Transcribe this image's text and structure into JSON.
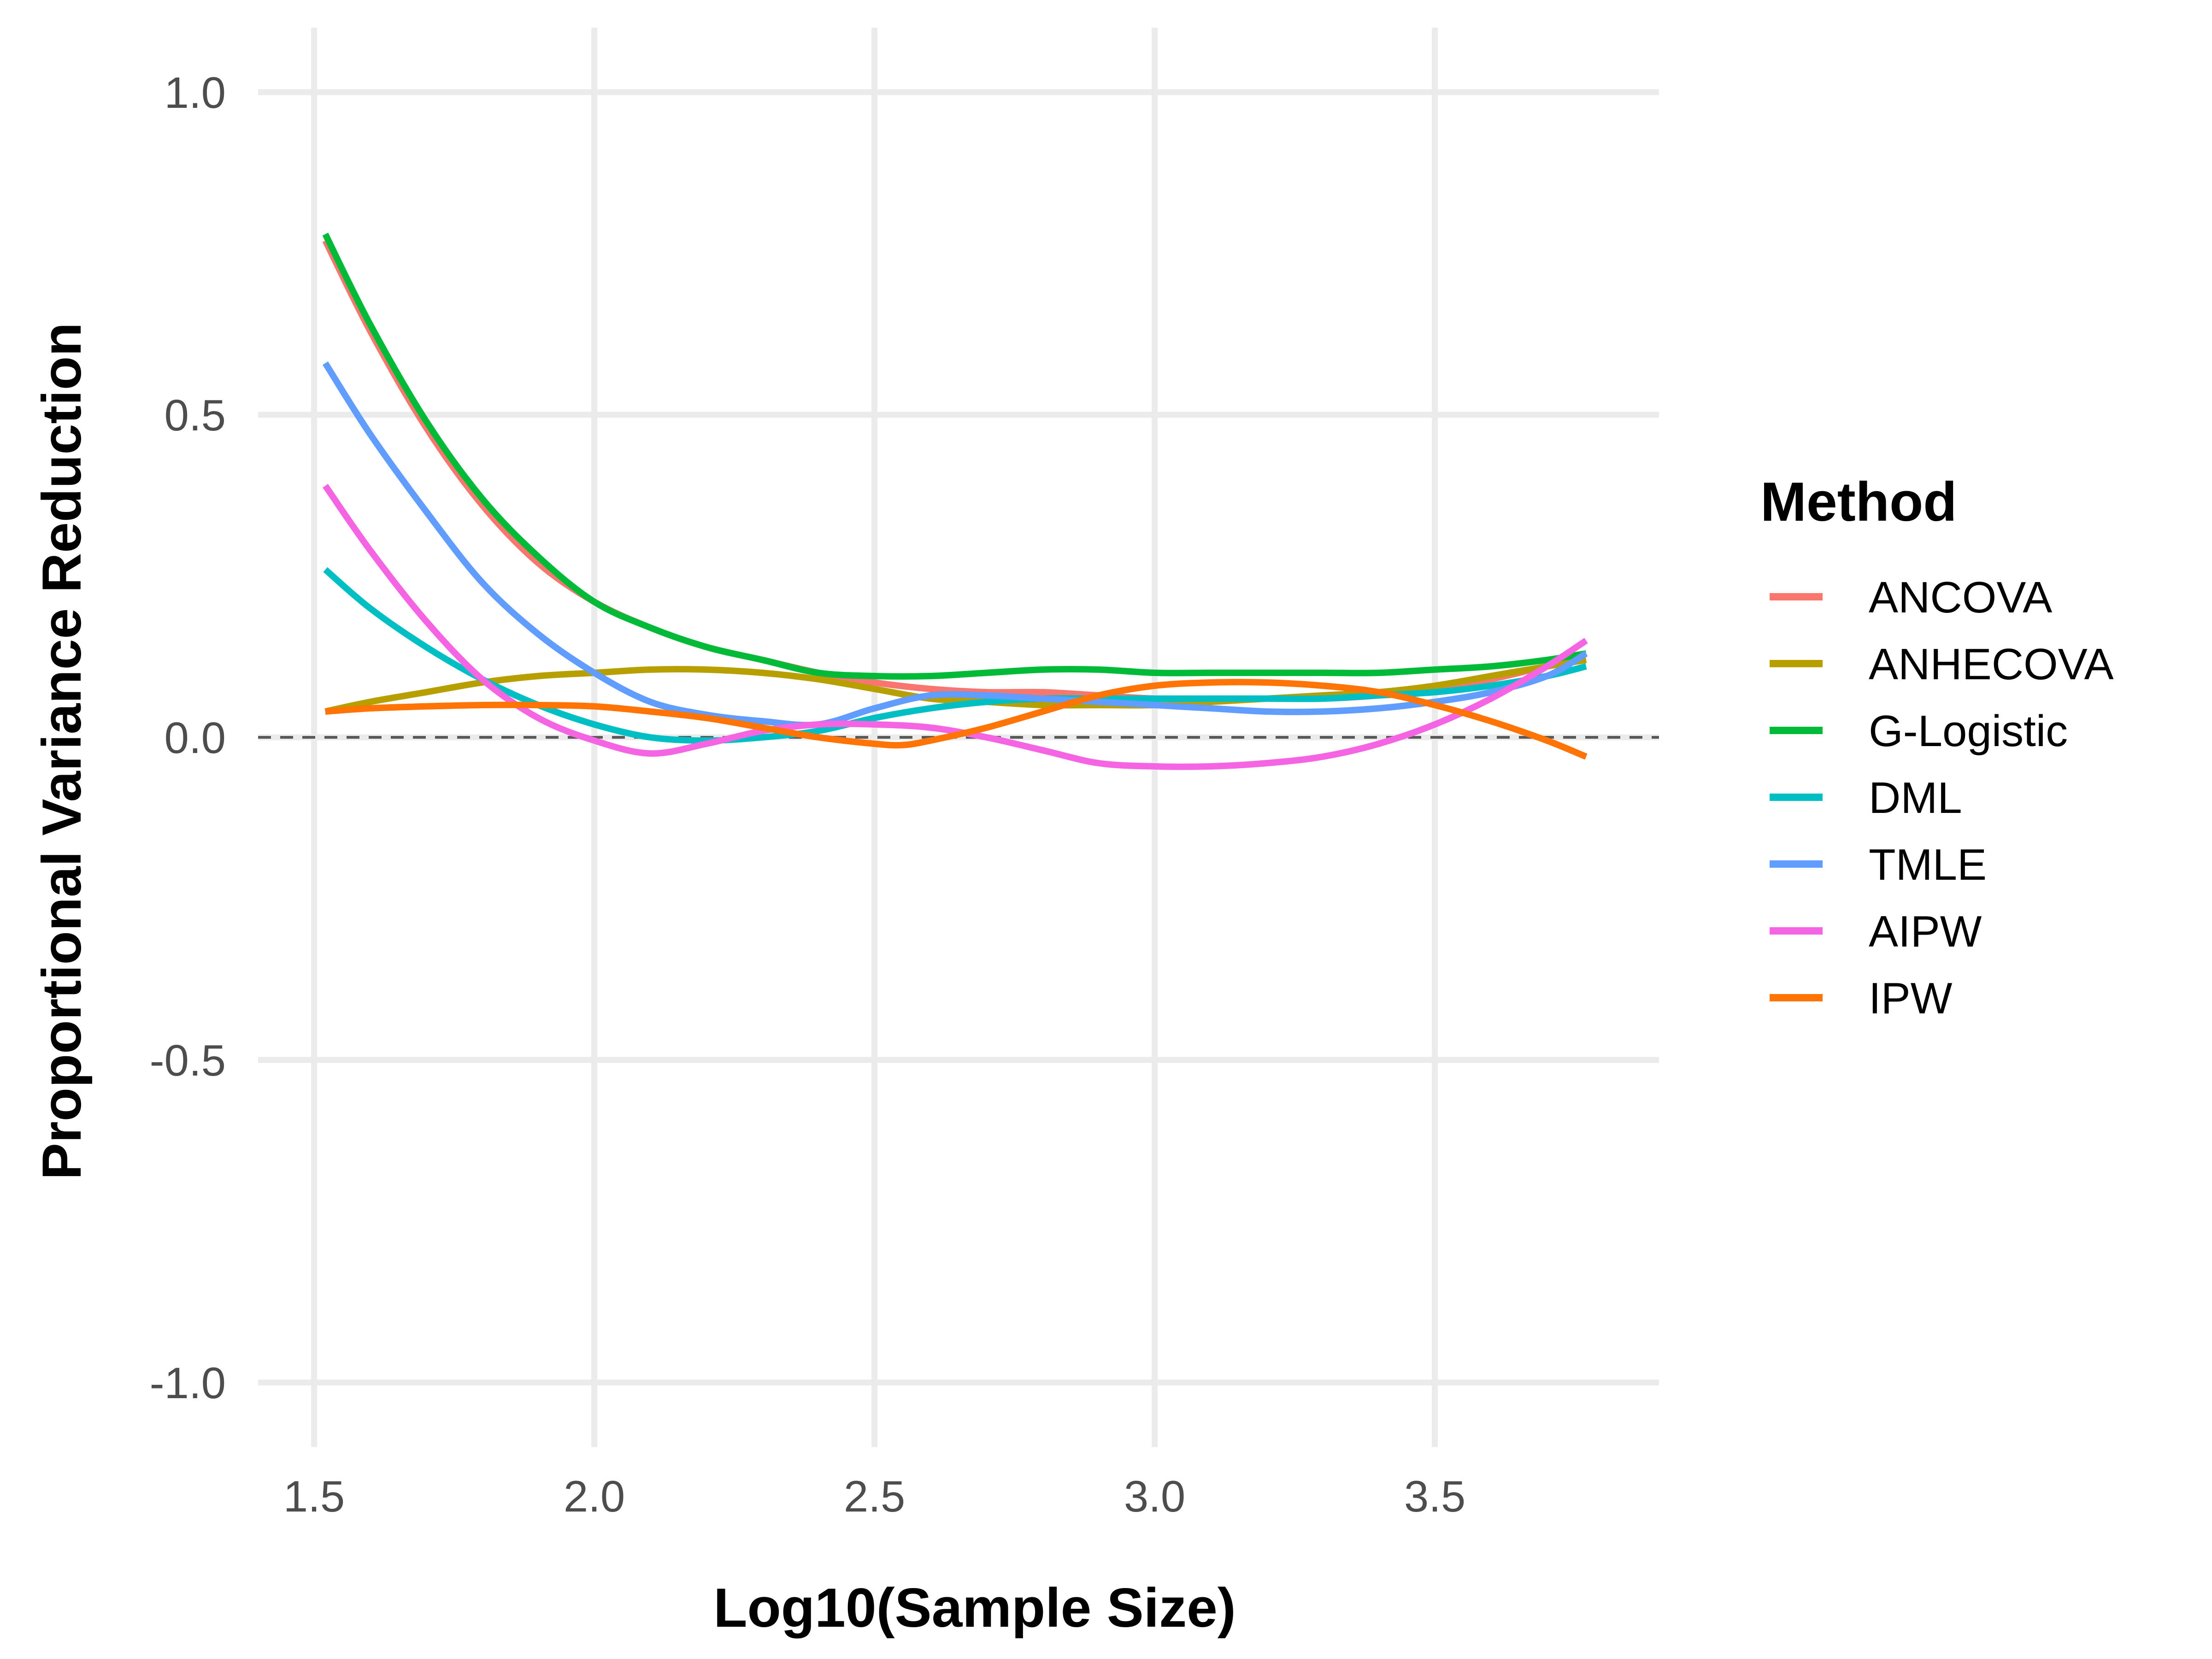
{
  "chart_data": {
    "type": "line",
    "title": "",
    "xlabel": "Log10(Sample Size)",
    "ylabel": "Proportional Variance Reduction",
    "xlim": [
      1.4,
      3.9
    ],
    "ylim": [
      -1.1,
      1.1
    ],
    "x_ticks": [
      "1.5",
      "2.0",
      "2.5",
      "3.0",
      "3.5"
    ],
    "y_ticks": [
      "-1.0",
      "-0.5",
      "0.0",
      "0.5",
      "1.0"
    ],
    "x_tick_values": [
      1.5,
      2.0,
      2.5,
      3.0,
      3.5
    ],
    "y_tick_values": [
      -1.0,
      -0.5,
      0.0,
      0.5,
      1.0
    ],
    "reference_line": {
      "y": 0.0,
      "style": "dashed",
      "color": "#5a5a5a"
    },
    "grid": true,
    "legend": {
      "title": "Method",
      "position": "right"
    },
    "series": [
      {
        "name": "ANCOVA",
        "color": "#F8766D",
        "points": [
          [
            1.52,
            0.77
          ],
          [
            1.6,
            0.63
          ],
          [
            1.7,
            0.48
          ],
          [
            1.8,
            0.36
          ],
          [
            1.9,
            0.27
          ],
          [
            2.0,
            0.21
          ],
          [
            2.1,
            0.17
          ],
          [
            2.2,
            0.14
          ],
          [
            2.3,
            0.12
          ],
          [
            2.4,
            0.1
          ],
          [
            2.5,
            0.085
          ],
          [
            2.6,
            0.075
          ],
          [
            2.7,
            0.07
          ],
          [
            2.8,
            0.07
          ],
          [
            2.9,
            0.065
          ],
          [
            3.0,
            0.06
          ],
          [
            3.1,
            0.06
          ],
          [
            3.2,
            0.06
          ],
          [
            3.3,
            0.06
          ],
          [
            3.4,
            0.065
          ],
          [
            3.5,
            0.075
          ],
          [
            3.6,
            0.09
          ],
          [
            3.7,
            0.11
          ],
          [
            3.77,
            0.12
          ]
        ]
      },
      {
        "name": "ANHECOVA",
        "color": "#B79F00",
        "points": [
          [
            1.52,
            0.04
          ],
          [
            1.6,
            0.055
          ],
          [
            1.7,
            0.07
          ],
          [
            1.8,
            0.085
          ],
          [
            1.9,
            0.095
          ],
          [
            2.0,
            0.1
          ],
          [
            2.1,
            0.105
          ],
          [
            2.2,
            0.105
          ],
          [
            2.3,
            0.1
          ],
          [
            2.4,
            0.09
          ],
          [
            2.5,
            0.075
          ],
          [
            2.6,
            0.06
          ],
          [
            2.7,
            0.055
          ],
          [
            2.8,
            0.05
          ],
          [
            2.9,
            0.05
          ],
          [
            3.0,
            0.05
          ],
          [
            3.1,
            0.055
          ],
          [
            3.2,
            0.06
          ],
          [
            3.3,
            0.065
          ],
          [
            3.4,
            0.07
          ],
          [
            3.5,
            0.08
          ],
          [
            3.6,
            0.095
          ],
          [
            3.7,
            0.11
          ],
          [
            3.77,
            0.12
          ]
        ]
      },
      {
        "name": "G-Logistic",
        "color": "#00BA38",
        "points": [
          [
            1.52,
            0.78
          ],
          [
            1.6,
            0.64
          ],
          [
            1.7,
            0.49
          ],
          [
            1.8,
            0.37
          ],
          [
            1.9,
            0.28
          ],
          [
            2.0,
            0.21
          ],
          [
            2.1,
            0.17
          ],
          [
            2.2,
            0.14
          ],
          [
            2.3,
            0.12
          ],
          [
            2.4,
            0.1
          ],
          [
            2.5,
            0.095
          ],
          [
            2.6,
            0.095
          ],
          [
            2.7,
            0.1
          ],
          [
            2.8,
            0.105
          ],
          [
            2.9,
            0.105
          ],
          [
            3.0,
            0.1
          ],
          [
            3.1,
            0.1
          ],
          [
            3.2,
            0.1
          ],
          [
            3.3,
            0.1
          ],
          [
            3.4,
            0.1
          ],
          [
            3.5,
            0.105
          ],
          [
            3.6,
            0.11
          ],
          [
            3.7,
            0.12
          ],
          [
            3.77,
            0.13
          ]
        ]
      },
      {
        "name": "DML",
        "color": "#00BFC4",
        "points": [
          [
            1.52,
            0.26
          ],
          [
            1.6,
            0.2
          ],
          [
            1.7,
            0.14
          ],
          [
            1.8,
            0.09
          ],
          [
            1.9,
            0.05
          ],
          [
            2.0,
            0.02
          ],
          [
            2.1,
            0.0
          ],
          [
            2.2,
            -0.005
          ],
          [
            2.3,
            0.0
          ],
          [
            2.4,
            0.01
          ],
          [
            2.5,
            0.03
          ],
          [
            2.6,
            0.045
          ],
          [
            2.7,
            0.055
          ],
          [
            2.8,
            0.06
          ],
          [
            2.9,
            0.06
          ],
          [
            3.0,
            0.06
          ],
          [
            3.1,
            0.06
          ],
          [
            3.2,
            0.06
          ],
          [
            3.3,
            0.06
          ],
          [
            3.4,
            0.065
          ],
          [
            3.5,
            0.07
          ],
          [
            3.6,
            0.08
          ],
          [
            3.7,
            0.095
          ],
          [
            3.77,
            0.11
          ]
        ]
      },
      {
        "name": "TMLE",
        "color": "#619CFF",
        "points": [
          [
            1.52,
            0.58
          ],
          [
            1.6,
            0.47
          ],
          [
            1.7,
            0.35
          ],
          [
            1.8,
            0.24
          ],
          [
            1.9,
            0.16
          ],
          [
            2.0,
            0.1
          ],
          [
            2.1,
            0.055
          ],
          [
            2.2,
            0.035
          ],
          [
            2.3,
            0.025
          ],
          [
            2.4,
            0.02
          ],
          [
            2.5,
            0.045
          ],
          [
            2.6,
            0.065
          ],
          [
            2.7,
            0.065
          ],
          [
            2.8,
            0.06
          ],
          [
            2.9,
            0.055
          ],
          [
            3.0,
            0.05
          ],
          [
            3.1,
            0.045
          ],
          [
            3.2,
            0.04
          ],
          [
            3.3,
            0.04
          ],
          [
            3.4,
            0.045
          ],
          [
            3.5,
            0.055
          ],
          [
            3.6,
            0.07
          ],
          [
            3.7,
            0.095
          ],
          [
            3.77,
            0.13
          ]
        ]
      },
      {
        "name": "AIPW",
        "color": "#F564E3",
        "points": [
          [
            1.52,
            0.39
          ],
          [
            1.6,
            0.29
          ],
          [
            1.7,
            0.18
          ],
          [
            1.8,
            0.09
          ],
          [
            1.9,
            0.03
          ],
          [
            2.0,
            -0.005
          ],
          [
            2.1,
            -0.025
          ],
          [
            2.2,
            -0.01
          ],
          [
            2.3,
            0.01
          ],
          [
            2.4,
            0.02
          ],
          [
            2.5,
            0.02
          ],
          [
            2.6,
            0.015
          ],
          [
            2.7,
            0.0
          ],
          [
            2.8,
            -0.02
          ],
          [
            2.9,
            -0.04
          ],
          [
            3.0,
            -0.045
          ],
          [
            3.1,
            -0.045
          ],
          [
            3.2,
            -0.04
          ],
          [
            3.3,
            -0.03
          ],
          [
            3.4,
            -0.01
          ],
          [
            3.5,
            0.02
          ],
          [
            3.6,
            0.06
          ],
          [
            3.7,
            0.11
          ],
          [
            3.77,
            0.15
          ]
        ]
      },
      {
        "name": "IPW",
        "color": "#FF7405",
        "points": [
          [
            1.52,
            0.04
          ],
          [
            1.6,
            0.045
          ],
          [
            1.7,
            0.048
          ],
          [
            1.8,
            0.05
          ],
          [
            1.9,
            0.05
          ],
          [
            2.0,
            0.048
          ],
          [
            2.1,
            0.04
          ],
          [
            2.2,
            0.03
          ],
          [
            2.3,
            0.015
          ],
          [
            2.4,
            0.0
          ],
          [
            2.5,
            -0.01
          ],
          [
            2.55,
            -0.012
          ],
          [
            2.6,
            -0.005
          ],
          [
            2.7,
            0.015
          ],
          [
            2.8,
            0.04
          ],
          [
            2.9,
            0.065
          ],
          [
            3.0,
            0.08
          ],
          [
            3.1,
            0.085
          ],
          [
            3.2,
            0.085
          ],
          [
            3.3,
            0.08
          ],
          [
            3.4,
            0.07
          ],
          [
            3.5,
            0.05
          ],
          [
            3.6,
            0.025
          ],
          [
            3.7,
            -0.005
          ],
          [
            3.77,
            -0.03
          ]
        ]
      }
    ]
  }
}
